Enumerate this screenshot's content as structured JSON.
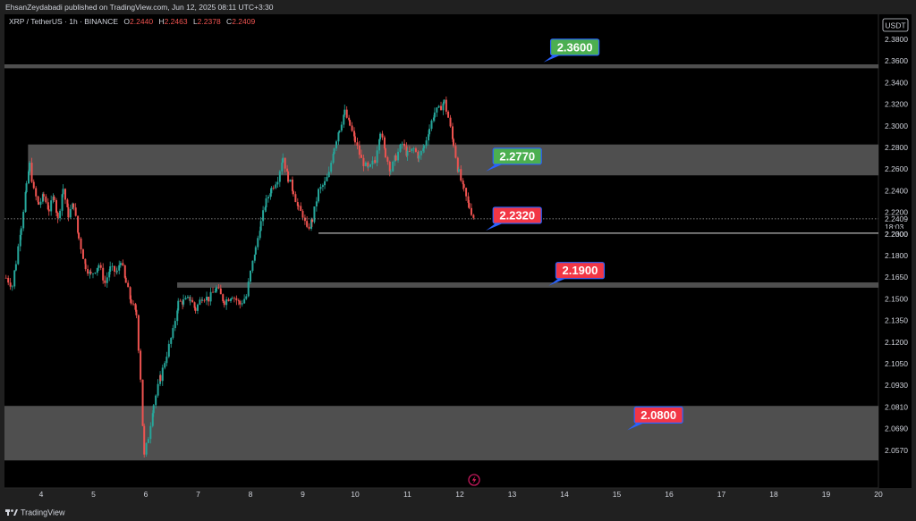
{
  "publisher_line": "EhsanZeydabadi published on TradingView.com, Jun 12, 2025 08:11 UTC+3:30",
  "symbol_line": "XRP / TetherUS · 1h · BINANCE",
  "ohlc": {
    "o_label": "O",
    "o_value": "2.2440",
    "h_label": "H",
    "h_value": "2.2463",
    "l_label": "L",
    "l_value": "2.2378",
    "c_label": "C",
    "c_value": "2.2409"
  },
  "currency_badge": "USDT",
  "footer_brand": "TradingView",
  "icons": {
    "brand": "tradingview-logo-icon",
    "event": "lightning-icon"
  },
  "colors": {
    "up": "#26a69a",
    "down": "#ef5350",
    "green_callout": "#4caf50",
    "red_callout": "#f23645",
    "zone": "#5d5d5d",
    "pointer": "#2962ff"
  },
  "chart_data": {
    "type": "candlestick",
    "x_axis": {
      "range": [
        3.3,
        20
      ],
      "ticks": [
        4,
        5,
        6,
        7,
        8,
        9,
        10,
        11,
        12,
        13,
        14,
        15,
        16,
        17,
        18,
        19,
        20
      ],
      "tick_labels": [
        "4",
        "5",
        "6",
        "7",
        "8",
        "9",
        "10",
        "11",
        "12",
        "13",
        "14",
        "15",
        "16",
        "17",
        "18",
        "19",
        "20"
      ]
    },
    "y_axis": {
      "ticks": [
        2.38,
        2.36,
        2.34,
        2.32,
        2.3,
        2.28,
        2.26,
        2.24,
        2.22,
        2.2,
        2.18,
        2.165,
        2.15,
        2.135,
        2.12,
        2.105,
        2.093,
        2.081,
        2.069,
        2.057
      ],
      "tick_labels": [
        "2.3800",
        "2.3600",
        "2.3400",
        "2.3200",
        "2.3000",
        "2.2800",
        "2.2600",
        "2.2400",
        "2.2200",
        "2.2000",
        "2.1800",
        "2.1650",
        "2.1500",
        "2.1350",
        "2.1200",
        "2.1050",
        "2.0930",
        "2.0810",
        "2.0690",
        "2.0570"
      ]
    },
    "last_price": {
      "value": 2.2409,
      "label": "2.2409",
      "countdown": "18:03"
    },
    "marked_level": {
      "value": 2.23,
      "label": "2.2300",
      "from_x": 9.3
    },
    "zones": [
      {
        "from_x": 3.3,
        "y_low": 2.3555,
        "y_high": 2.3585
      },
      {
        "from_x": 3.75,
        "y_low": 2.274,
        "y_high": 2.2975
      },
      {
        "from_x": 6.6,
        "y_low": 2.1885,
        "y_high": 2.1925
      },
      {
        "from_x": 3.3,
        "y_low": 2.057,
        "y_high": 2.0985
      }
    ],
    "callouts": [
      {
        "label": "2.3600",
        "value": 2.36,
        "color": "green",
        "x": 13.6
      },
      {
        "label": "2.2770",
        "value": 2.277,
        "color": "green",
        "x": 12.5
      },
      {
        "label": "2.2320",
        "value": 2.232,
        "color": "red",
        "x": 12.5
      },
      {
        "label": "2.1900",
        "value": 2.19,
        "color": "red",
        "x": 13.7
      },
      {
        "label": "2.0800",
        "value": 2.08,
        "color": "red",
        "x": 15.2
      }
    ],
    "price_path": [
      [
        3.33,
        2.196
      ],
      [
        3.45,
        2.19
      ],
      [
        3.52,
        2.208
      ],
      [
        3.62,
        2.236
      ],
      [
        3.72,
        2.265
      ],
      [
        3.78,
        2.282
      ],
      [
        3.86,
        2.262
      ],
      [
        3.95,
        2.252
      ],
      [
        4.05,
        2.258
      ],
      [
        4.15,
        2.248
      ],
      [
        4.25,
        2.258
      ],
      [
        4.32,
        2.24
      ],
      [
        4.42,
        2.264
      ],
      [
        4.52,
        2.244
      ],
      [
        4.62,
        2.252
      ],
      [
        4.72,
        2.226
      ],
      [
        4.85,
        2.205
      ],
      [
        4.95,
        2.198
      ],
      [
        5.1,
        2.206
      ],
      [
        5.22,
        2.192
      ],
      [
        5.32,
        2.203
      ],
      [
        5.45,
        2.2
      ],
      [
        5.52,
        2.21
      ],
      [
        5.62,
        2.192
      ],
      [
        5.72,
        2.178
      ],
      [
        5.82,
        2.168
      ],
      [
        5.9,
        2.12
      ],
      [
        5.97,
        2.06
      ],
      [
        6.05,
        2.075
      ],
      [
        6.15,
        2.1
      ],
      [
        6.28,
        2.12
      ],
      [
        6.4,
        2.138
      ],
      [
        6.52,
        2.155
      ],
      [
        6.62,
        2.177
      ],
      [
        6.72,
        2.178
      ],
      [
        6.85,
        2.18
      ],
      [
        6.95,
        2.172
      ],
      [
        7.08,
        2.182
      ],
      [
        7.2,
        2.18
      ],
      [
        7.35,
        2.188
      ],
      [
        7.5,
        2.178
      ],
      [
        7.65,
        2.183
      ],
      [
        7.8,
        2.176
      ],
      [
        7.92,
        2.182
      ],
      [
        8.0,
        2.2
      ],
      [
        8.1,
        2.218
      ],
      [
        8.2,
        2.238
      ],
      [
        8.3,
        2.254
      ],
      [
        8.4,
        2.264
      ],
      [
        8.52,
        2.272
      ],
      [
        8.62,
        2.288
      ],
      [
        8.72,
        2.272
      ],
      [
        8.82,
        2.262
      ],
      [
        8.92,
        2.248
      ],
      [
        9.0,
        2.244
      ],
      [
        9.08,
        2.232
      ],
      [
        9.18,
        2.24
      ],
      [
        9.3,
        2.262
      ],
      [
        9.42,
        2.268
      ],
      [
        9.5,
        2.275
      ],
      [
        9.6,
        2.296
      ],
      [
        9.7,
        2.31
      ],
      [
        9.8,
        2.322
      ],
      [
        9.9,
        2.312
      ],
      [
        10.0,
        2.3
      ],
      [
        10.12,
        2.286
      ],
      [
        10.25,
        2.278
      ],
      [
        10.38,
        2.286
      ],
      [
        10.48,
        2.308
      ],
      [
        10.58,
        2.29
      ],
      [
        10.68,
        2.278
      ],
      [
        10.78,
        2.288
      ],
      [
        10.9,
        2.298
      ],
      [
        11.0,
        2.29
      ],
      [
        11.12,
        2.294
      ],
      [
        11.22,
        2.288
      ],
      [
        11.32,
        2.296
      ],
      [
        11.42,
        2.31
      ],
      [
        11.52,
        2.322
      ],
      [
        11.6,
        2.324
      ],
      [
        11.7,
        2.33
      ],
      [
        11.78,
        2.318
      ],
      [
        11.88,
        2.298
      ],
      [
        11.98,
        2.276
      ],
      [
        12.08,
        2.262
      ],
      [
        12.18,
        2.25
      ],
      [
        12.28,
        2.241
      ]
    ]
  }
}
